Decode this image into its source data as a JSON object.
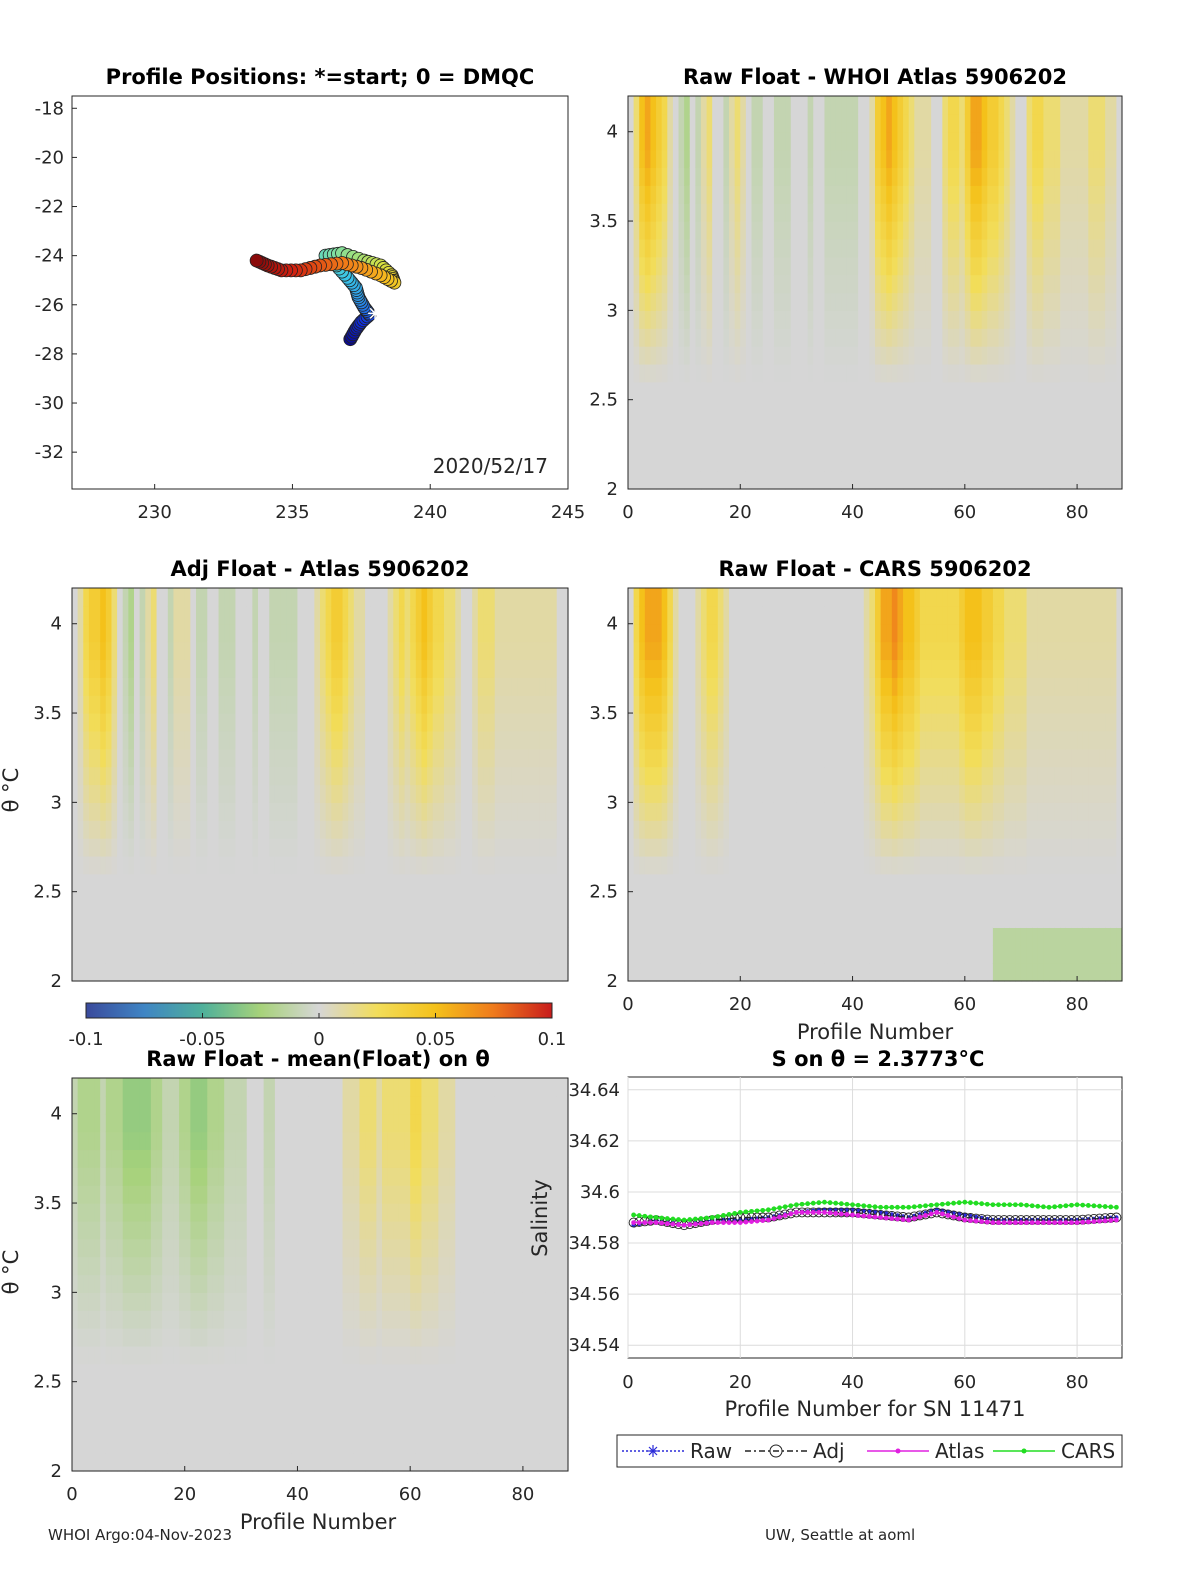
{
  "footer": {
    "left": "WHOI Argo:04-Nov-2023",
    "right": "UW, Seattle at aoml"
  },
  "colorbar": {
    "ticks": [
      "-0.1",
      "-0.05",
      "0",
      "0.05",
      "0.1"
    ],
    "colors": [
      "#3a4a9c",
      "#3f85c4",
      "#4fb09a",
      "#a7d27a",
      "#d6d6d6",
      "#f2dd5a",
      "#f4c11a",
      "#ef7a1c",
      "#c81c1c"
    ]
  },
  "chart_data": [
    {
      "id": "positions",
      "type": "scatter",
      "title": "Profile Positions: *=start; 0 = DMQC",
      "annotation": "2020/52/17",
      "xlim": [
        227,
        245
      ],
      "ylim": [
        -33.5,
        -17.5
      ],
      "xticks": [
        "230",
        "235",
        "240",
        "245"
      ],
      "yticks": [
        "-18",
        "-20",
        "-22",
        "-24",
        "-26",
        "-28",
        "-30",
        "-32"
      ],
      "start": [
        238.0,
        -26.35
      ],
      "track": [
        [
          237.1,
          -27.4
        ],
        [
          237.3,
          -27.0
        ],
        [
          237.5,
          -26.7
        ],
        [
          237.8,
          -26.4
        ],
        [
          237.6,
          -26.1
        ],
        [
          237.4,
          -25.7
        ],
        [
          237.3,
          -25.3
        ],
        [
          237.0,
          -24.9
        ],
        [
          236.6,
          -24.4
        ],
        [
          236.2,
          -24.0
        ],
        [
          236.8,
          -23.9
        ],
        [
          237.6,
          -24.2
        ],
        [
          238.2,
          -24.4
        ],
        [
          238.6,
          -24.8
        ],
        [
          238.7,
          -25.1
        ],
        [
          238.2,
          -24.8
        ],
        [
          237.5,
          -24.5
        ],
        [
          236.8,
          -24.3
        ],
        [
          236.0,
          -24.4
        ],
        [
          235.3,
          -24.6
        ],
        [
          234.6,
          -24.6
        ],
        [
          234.1,
          -24.4
        ],
        [
          233.7,
          -24.2
        ]
      ]
    },
    {
      "id": "raw-atlas",
      "type": "heatmap",
      "title": "Raw Float - WHOI Atlas  5906202",
      "xlim": [
        0,
        88
      ],
      "ylim": [
        2,
        4.2
      ],
      "xticks": [
        "0",
        "20",
        "40",
        "60",
        "80"
      ],
      "yticks": [
        "2",
        "2.5",
        "3",
        "3.5",
        "4"
      ],
      "columns": [
        0.0,
        0.02,
        0.05,
        0.06,
        0.05,
        0.04,
        0.03,
        0.01,
        0.0,
        -0.01,
        -0.02,
        0.0,
        -0.01,
        0.01,
        0.02,
        0.0,
        0.0,
        -0.01,
        0.01,
        0.02,
        0.01,
        0.0,
        -0.01,
        -0.01,
        0.0,
        0.0,
        -0.01,
        -0.01,
        -0.01,
        0.0,
        0.0,
        0.0,
        -0.01,
        0.0,
        0.0,
        -0.01,
        -0.01,
        -0.01,
        -0.01,
        -0.01,
        -0.01,
        0.0,
        0.0,
        0.01,
        0.04,
        0.05,
        0.06,
        0.05,
        0.04,
        0.03,
        0.02,
        0.01,
        0.01,
        0.01,
        0.0,
        0.0,
        0.02,
        0.03,
        0.03,
        0.02,
        0.04,
        0.06,
        0.06,
        0.05,
        0.04,
        0.04,
        0.03,
        0.02,
        0.01,
        0.0,
        0.0,
        0.02,
        0.03,
        0.03,
        0.02,
        0.02,
        0.02,
        0.01,
        0.01,
        0.01,
        0.01,
        0.01,
        0.02,
        0.02,
        0.02,
        0.01,
        0.01,
        0.0
      ]
    },
    {
      "id": "adj-atlas",
      "type": "heatmap",
      "title": "Adj Float - Atlas  5906202",
      "ylabel": "θ °C",
      "xlim": [
        0,
        88
      ],
      "ylim": [
        2,
        4.2
      ],
      "yticks": [
        "2",
        "2.5",
        "3",
        "3.5",
        "4"
      ],
      "columns": [
        0.0,
        0.01,
        0.03,
        0.04,
        0.04,
        0.05,
        0.04,
        0.02,
        0.0,
        -0.01,
        -0.02,
        0.0,
        -0.01,
        0.01,
        0.02,
        0.0,
        0.0,
        -0.01,
        0.01,
        0.01,
        0.01,
        0.0,
        -0.01,
        -0.01,
        0.0,
        0.0,
        -0.01,
        -0.01,
        -0.01,
        0.0,
        0.0,
        0.0,
        -0.01,
        0.0,
        0.0,
        -0.01,
        -0.01,
        -0.01,
        -0.01,
        -0.01,
        0.0,
        0.0,
        0.0,
        0.01,
        0.02,
        0.03,
        0.04,
        0.04,
        0.03,
        0.02,
        0.01,
        0.01,
        0.0,
        0.0,
        0.0,
        0.0,
        0.01,
        0.02,
        0.03,
        0.02,
        0.03,
        0.04,
        0.05,
        0.04,
        0.03,
        0.03,
        0.02,
        0.02,
        0.01,
        0.0,
        0.0,
        0.01,
        0.02,
        0.02,
        0.02,
        0.01,
        0.01,
        0.01,
        0.01,
        0.01,
        0.01,
        0.01,
        0.01,
        0.01,
        0.01,
        0.01,
        0.0,
        0.0
      ]
    },
    {
      "id": "raw-cars",
      "type": "heatmap",
      "title": "Raw Float - CARS  5906202",
      "xlabel": "Profile Number",
      "xlim": [
        0,
        88
      ],
      "ylim": [
        2,
        4.2
      ],
      "xticks": [
        "0",
        "20",
        "40",
        "60",
        "80"
      ],
      "yticks": [
        "2",
        "2.5",
        "3",
        "3.5",
        "4"
      ],
      "columns": [
        0.0,
        0.03,
        0.05,
        0.06,
        0.06,
        0.06,
        0.05,
        0.03,
        0.01,
        0.0,
        0.0,
        0.0,
        0.01,
        0.02,
        0.03,
        0.03,
        0.02,
        0.01,
        0.0,
        0.0,
        0.0,
        0.0,
        0.0,
        0.0,
        0.0,
        0.0,
        0.0,
        0.0,
        0.0,
        0.0,
        0.0,
        0.0,
        0.0,
        0.0,
        0.0,
        0.0,
        0.0,
        0.0,
        0.0,
        0.0,
        0.0,
        0.0,
        0.01,
        0.02,
        0.04,
        0.06,
        0.06,
        0.07,
        0.06,
        0.05,
        0.05,
        0.04,
        0.03,
        0.03,
        0.03,
        0.03,
        0.03,
        0.03,
        0.03,
        0.04,
        0.05,
        0.05,
        0.05,
        0.04,
        0.04,
        0.03,
        0.03,
        0.02,
        0.02,
        0.02,
        0.02,
        0.01,
        0.01,
        0.01,
        0.01,
        0.01,
        0.01,
        0.01,
        0.01,
        0.01,
        0.01,
        0.01,
        0.01,
        0.01,
        0.01,
        0.01,
        0.01,
        0.0
      ]
    },
    {
      "id": "raw-mean",
      "type": "heatmap",
      "title": "Raw Float - mean(Float) on θ",
      "ylabel": "θ °C",
      "xlabel": "Profile Number",
      "xlim": [
        0,
        88
      ],
      "ylim": [
        2,
        4.2
      ],
      "xticks": [
        "0",
        "20",
        "40",
        "60",
        "80"
      ],
      "yticks": [
        "2",
        "2.5",
        "3",
        "3.5",
        "4"
      ],
      "columns": [
        -0.01,
        -0.02,
        -0.02,
        -0.02,
        -0.02,
        -0.01,
        -0.02,
        -0.02,
        -0.02,
        -0.03,
        -0.03,
        -0.03,
        -0.03,
        -0.03,
        -0.02,
        -0.02,
        -0.01,
        -0.01,
        -0.01,
        -0.02,
        -0.02,
        -0.03,
        -0.03,
        -0.03,
        -0.02,
        -0.02,
        -0.02,
        -0.01,
        -0.01,
        -0.01,
        -0.01,
        0.0,
        0.0,
        0.0,
        -0.01,
        -0.01,
        0.0,
        0.0,
        0.0,
        0.0,
        0.0,
        0.0,
        0.0,
        0.0,
        0.0,
        0.0,
        0.0,
        0.0,
        0.01,
        0.01,
        0.01,
        0.02,
        0.02,
        0.02,
        0.01,
        0.02,
        0.02,
        0.02,
        0.02,
        0.02,
        0.03,
        0.03,
        0.02,
        0.02,
        0.02,
        0.01,
        0.01,
        0.01,
        0.0,
        0.0,
        0.0,
        0.0,
        0.0,
        0.0,
        0.0,
        0.0,
        0.0,
        0.0,
        0.0,
        0.0,
        0.0,
        0.0,
        0.0,
        0.0,
        0.0,
        0.0,
        0.0,
        0.0
      ]
    },
    {
      "id": "salinity",
      "type": "line",
      "title": "S on θ = 2.3773°C",
      "xlabel": "Profile Number for SN 11471",
      "ylabel": "Salinity",
      "xlim": [
        0,
        88
      ],
      "ylim": [
        34.535,
        34.645
      ],
      "xticks": [
        "0",
        "20",
        "40",
        "60",
        "80"
      ],
      "yticks": [
        "34.54",
        "34.56",
        "34.58",
        "34.6",
        "34.62",
        "34.64"
      ],
      "series": [
        {
          "name": "Raw",
          "color": "#2b2bd9",
          "x": [
            1,
            5,
            10,
            15,
            20,
            25,
            30,
            35,
            40,
            45,
            50,
            55,
            60,
            65,
            70,
            75,
            80,
            87
          ],
          "values": [
            34.587,
            34.589,
            34.587,
            34.589,
            34.589,
            34.59,
            34.592,
            34.593,
            34.593,
            34.592,
            34.59,
            34.593,
            34.591,
            34.589,
            34.589,
            34.589,
            34.589,
            34.59
          ]
        },
        {
          "name": "Adj",
          "color": "#222222",
          "x": [
            1,
            5,
            10,
            15,
            20,
            25,
            30,
            35,
            40,
            45,
            50,
            55,
            60,
            65,
            70,
            75,
            80,
            87
          ],
          "values": [
            34.588,
            34.589,
            34.587,
            34.589,
            34.59,
            34.59,
            34.592,
            34.592,
            34.592,
            34.591,
            34.59,
            34.592,
            34.59,
            34.589,
            34.589,
            34.589,
            34.589,
            34.59
          ]
        },
        {
          "name": "Atlas",
          "color": "#e020e0",
          "x": [
            1,
            5,
            10,
            15,
            20,
            25,
            30,
            35,
            40,
            45,
            50,
            55,
            60,
            65,
            70,
            75,
            80,
            87
          ],
          "values": [
            34.588,
            34.588,
            34.587,
            34.588,
            34.588,
            34.589,
            34.592,
            34.592,
            34.591,
            34.59,
            34.589,
            34.592,
            34.589,
            34.588,
            34.588,
            34.588,
            34.588,
            34.589
          ]
        },
        {
          "name": "CARS",
          "color": "#22dd22",
          "x": [
            1,
            5,
            10,
            15,
            20,
            25,
            30,
            35,
            40,
            45,
            50,
            55,
            60,
            65,
            70,
            75,
            80,
            87
          ],
          "values": [
            34.591,
            34.59,
            34.589,
            34.59,
            34.592,
            34.593,
            34.595,
            34.596,
            34.595,
            34.594,
            34.594,
            34.595,
            34.596,
            34.595,
            34.595,
            34.594,
            34.595,
            34.594
          ]
        }
      ]
    }
  ]
}
